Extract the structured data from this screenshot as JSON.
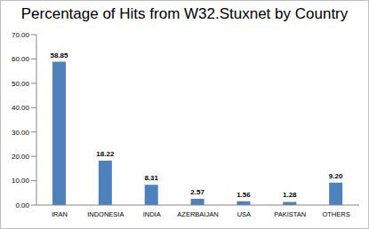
{
  "chart_data": {
    "type": "bar",
    "title": "Percentage of Hits from W32.Stuxnet by Country",
    "categories": [
      "IRAN",
      "INDONESIA",
      "INDIA",
      "AZERBAIJAN",
      "USA",
      "PAKISTAN",
      "OTHERS"
    ],
    "values": [
      58.85,
      18.22,
      8.31,
      2.57,
      1.56,
      1.28,
      9.2
    ],
    "value_labels": [
      "58.85",
      "18.22",
      "8.31",
      "2.57",
      "1.56",
      "1.28",
      "9.20"
    ],
    "data_labels": true,
    "color": "#4f81bd",
    "ylim": [
      0,
      70
    ],
    "yticks": [
      {
        "value": 0,
        "label": "0.00"
      },
      {
        "value": 10,
        "label": "10.00"
      },
      {
        "value": 20,
        "label": "20.00"
      },
      {
        "value": 30,
        "label": "30.00"
      },
      {
        "value": 40,
        "label": "40.00"
      },
      {
        "value": 50,
        "label": "50.00"
      },
      {
        "value": 60,
        "label": "60.00"
      },
      {
        "value": 70,
        "label": "70.00"
      }
    ],
    "grid": false
  }
}
